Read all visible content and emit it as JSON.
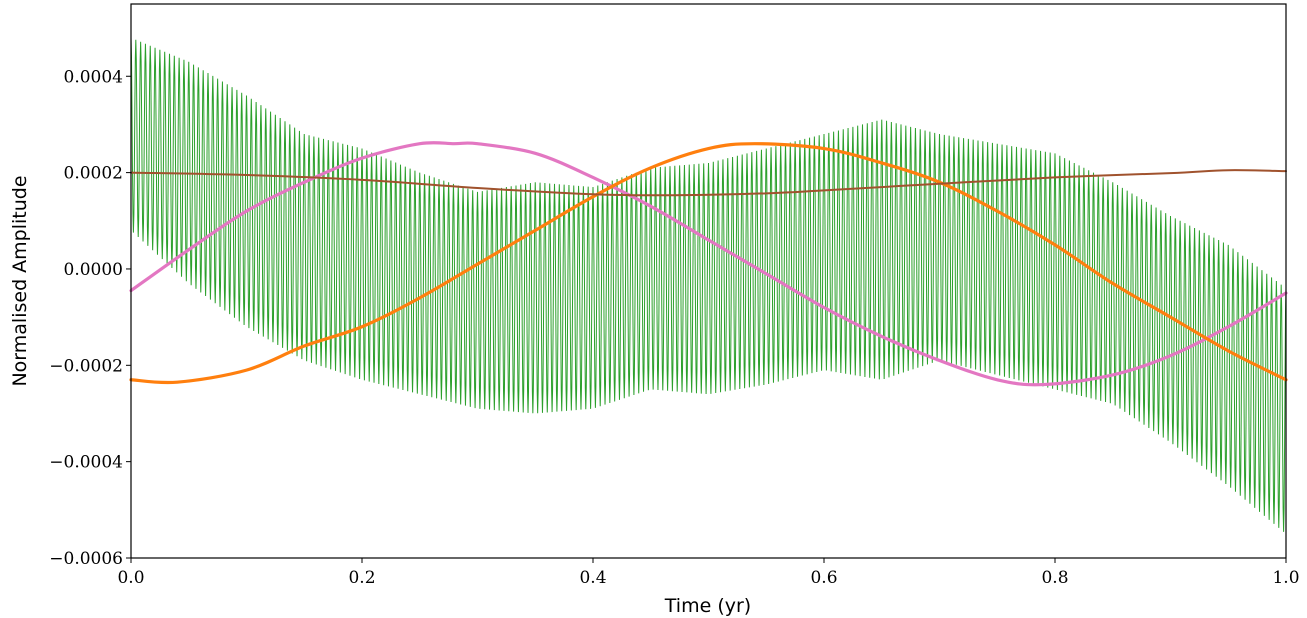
{
  "chart_data": {
    "type": "line",
    "title": "",
    "xlabel": "Time (yr)",
    "ylabel": "Normalised Amplitude",
    "xlim": [
      0.0,
      1.0
    ],
    "ylim": [
      -0.0006,
      0.00055
    ],
    "grid": false,
    "x_ticks": [
      0.0,
      0.2,
      0.4,
      0.6,
      0.8,
      1.0
    ],
    "x_tick_labels": [
      "0.0",
      "0.2",
      "0.4",
      "0.6",
      "0.8",
      "1.0"
    ],
    "y_ticks": [
      0.0004,
      0.0002,
      0.0,
      -0.0002,
      -0.0004,
      -0.0006
    ],
    "y_tick_labels": [
      "0.0004",
      "0.0002",
      "0.0000",
      "−0.0002",
      "−0.0004",
      "−0.0006"
    ],
    "series": [
      {
        "color": "#2ca02c",
        "style": "fast-oscillation",
        "x": [
          0.0,
          0.05,
          0.1,
          0.15,
          0.2,
          0.25,
          0.3,
          0.35,
          0.4,
          0.45,
          0.5,
          0.55,
          0.6,
          0.65,
          0.7,
          0.75,
          0.8,
          0.85,
          0.9,
          0.95,
          1.0
        ],
        "upper_envelope": [
          0.00048,
          0.00043,
          0.00036,
          0.00028,
          0.00025,
          0.0002,
          0.00016,
          0.00018,
          0.00017,
          0.00021,
          0.00022,
          0.00025,
          0.00028,
          0.00031,
          0.00028,
          0.00026,
          0.00024,
          0.00018,
          0.00011,
          5e-05,
          -4e-05
        ],
        "lower_envelope": [
          8e-05,
          -3e-05,
          -0.00012,
          -0.00019,
          -0.00023,
          -0.00026,
          -0.00029,
          -0.0003,
          -0.00029,
          -0.00025,
          -0.00026,
          -0.00024,
          -0.00021,
          -0.00023,
          -0.00019,
          -0.00022,
          -0.00025,
          -0.00028,
          -0.00036,
          -0.00045,
          -0.00055
        ]
      },
      {
        "color": "#e377c2",
        "x": [
          0.0,
          0.05,
          0.1,
          0.15,
          0.2,
          0.25,
          0.28,
          0.3,
          0.35,
          0.4,
          0.45,
          0.5,
          0.55,
          0.6,
          0.65,
          0.7,
          0.75,
          0.79,
          0.85,
          0.9,
          0.95,
          1.0
        ],
        "y": [
          -4.5e-05,
          4e-05,
          0.00012,
          0.00018,
          0.00023,
          0.00026,
          0.00026,
          0.00026,
          0.00024,
          0.00019,
          0.00013,
          6e-05,
          -1e-05,
          -8e-05,
          -0.00014,
          -0.00019,
          -0.00023,
          -0.00024,
          -0.00022,
          -0.00018,
          -0.00012,
          -5e-05
        ]
      },
      {
        "color": "#ff7f0e",
        "x": [
          0.0,
          0.04,
          0.1,
          0.15,
          0.2,
          0.25,
          0.3,
          0.35,
          0.4,
          0.45,
          0.5,
          0.54,
          0.6,
          0.65,
          0.7,
          0.75,
          0.8,
          0.85,
          0.9,
          0.95,
          1.0
        ],
        "y": [
          -0.00023,
          -0.000235,
          -0.00021,
          -0.00016,
          -0.00012,
          -6e-05,
          1e-05,
          8e-05,
          0.00015,
          0.00021,
          0.00025,
          0.00026,
          0.00025,
          0.00022,
          0.00018,
          0.00012,
          5e-05,
          -3e-05,
          -0.0001,
          -0.00017,
          -0.00023
        ]
      },
      {
        "color": "#a0522d",
        "x": [
          0.0,
          0.1,
          0.2,
          0.3,
          0.4,
          0.47,
          0.55,
          0.6,
          0.7,
          0.8,
          0.9,
          0.95,
          1.0
        ],
        "y": [
          0.0002,
          0.000195,
          0.000185,
          0.000168,
          0.000155,
          0.000153,
          0.000157,
          0.000163,
          0.000177,
          0.00019,
          0.000199,
          0.000205,
          0.000203
        ]
      }
    ]
  }
}
